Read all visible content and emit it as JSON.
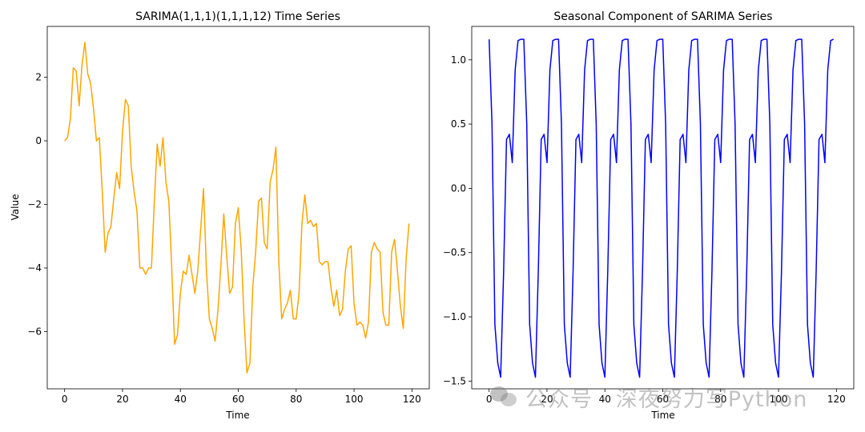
{
  "chart_data": [
    {
      "type": "line",
      "title": "SARIMA(1,1,1)(1,1,1,12) Time Series",
      "xlabel": "Time",
      "ylabel": "Value",
      "xlim": [
        -6,
        126
      ],
      "ylim": [
        -7.8,
        3.6
      ],
      "xticks": [
        0,
        20,
        40,
        60,
        80,
        100,
        120
      ],
      "yticks": [
        -6,
        -4,
        -2,
        0,
        2
      ],
      "ytick_labels": [
        "−6",
        "−4",
        "−2",
        "0",
        "2"
      ],
      "grid": false,
      "series": [
        {
          "color": "#FFA500",
          "x": [
            0,
            1,
            2,
            3,
            4,
            5,
            6,
            7,
            8,
            9,
            10,
            11,
            12,
            13,
            14,
            15,
            16,
            17,
            18,
            19,
            20,
            21,
            22,
            23,
            24,
            25,
            26,
            27,
            28,
            29,
            30,
            31,
            32,
            33,
            34,
            35,
            36,
            37,
            38,
            39,
            40,
            41,
            42,
            43,
            44,
            45,
            46,
            47,
            48,
            49,
            50,
            51,
            52,
            53,
            54,
            55,
            56,
            57,
            58,
            59,
            60,
            61,
            62,
            63,
            64,
            65,
            66,
            67,
            68,
            69,
            70,
            71,
            72,
            73,
            74,
            75,
            76,
            77,
            78,
            79,
            80,
            81,
            82,
            83,
            84,
            85,
            86,
            87,
            88,
            89,
            90,
            91,
            92,
            93,
            94,
            95,
            96,
            97,
            98,
            99,
            100,
            101,
            102,
            103,
            104,
            105,
            106,
            107,
            108,
            109,
            110,
            111,
            112,
            113,
            114,
            115,
            116,
            117,
            118,
            119
          ],
          "y": [
            0.0,
            0.1,
            0.7,
            2.3,
            2.2,
            1.1,
            2.4,
            3.1,
            2.1,
            1.8,
            1.0,
            0.0,
            0.1,
            -1.6,
            -3.5,
            -2.9,
            -2.7,
            -1.8,
            -1.0,
            -1.5,
            0.3,
            1.3,
            1.1,
            -0.8,
            -1.6,
            -2.2,
            -4.0,
            -4.0,
            -4.2,
            -4.0,
            -4.0,
            -1.9,
            -0.1,
            -0.8,
            0.1,
            -1.3,
            -1.9,
            -4.0,
            -6.4,
            -6.1,
            -4.8,
            -4.1,
            -4.2,
            -3.6,
            -4.2,
            -4.8,
            -4.1,
            -2.8,
            -1.5,
            -4.1,
            -5.6,
            -5.9,
            -6.3,
            -5.3,
            -3.9,
            -2.3,
            -3.6,
            -4.8,
            -4.6,
            -2.6,
            -2.1,
            -3.4,
            -5.6,
            -7.3,
            -7.0,
            -4.6,
            -3.5,
            -1.9,
            -1.8,
            -3.2,
            -3.4,
            -1.3,
            -0.9,
            -0.2,
            -3.8,
            -5.6,
            -5.3,
            -5.1,
            -4.7,
            -5.6,
            -5.6,
            -4.8,
            -2.6,
            -1.7,
            -2.6,
            -2.5,
            -2.7,
            -2.6,
            -3.8,
            -3.9,
            -3.8,
            -3.8,
            -4.6,
            -5.2,
            -4.7,
            -5.5,
            -5.3,
            -4.1,
            -3.4,
            -3.3,
            -5.1,
            -5.8,
            -5.7,
            -5.8,
            -6.2,
            -5.7,
            -3.5,
            -3.2,
            -3.4,
            -3.5,
            -5.4,
            -5.8,
            -5.8,
            -3.5,
            -3.1,
            -4.1,
            -5.2,
            -5.9,
            -3.7,
            -2.6
          ]
        }
      ]
    },
    {
      "type": "line",
      "title": "Seasonal Component of SARIMA Series",
      "xlabel": "Time",
      "ylabel": "",
      "xlim": [
        -6,
        126
      ],
      "ylim": [
        -1.56,
        1.26
      ],
      "xticks": [
        0,
        20,
        40,
        60,
        80,
        100,
        120
      ],
      "yticks": [
        -1.5,
        -1.0,
        -0.5,
        0.0,
        0.5,
        1.0
      ],
      "ytick_labels": [
        "−1.5",
        "−1.0",
        "−0.5",
        "0.0",
        "0.5",
        "1.0"
      ],
      "grid": false,
      "period": 12,
      "series": [
        {
          "color": "#0000FF",
          "x_start": 0,
          "x_end": 119,
          "pattern": [
            1.16,
            0.5,
            -1.06,
            -1.36,
            -1.47,
            -0.65,
            0.38,
            0.42,
            0.2,
            0.92,
            1.15,
            1.16
          ]
        }
      ]
    }
  ],
  "watermark": {
    "text": "公众号 · 深夜努力写Python"
  }
}
